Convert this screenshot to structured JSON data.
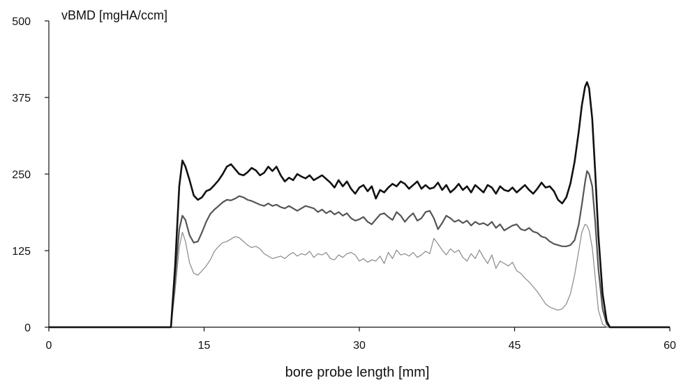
{
  "chart_data": {
    "type": "line",
    "title": "",
    "ylabel": "vBMD [mgHA/ccm]",
    "xlabel": "bore probe length  [mm]",
    "xlim": [
      0,
      60
    ],
    "ylim": [
      0,
      500
    ],
    "xticks": [
      0,
      15,
      30,
      45,
      60
    ],
    "yticks": [
      0,
      125,
      250,
      375,
      500
    ],
    "grid": false,
    "legend": "none",
    "series": [
      {
        "color": "#111111",
        "x": [
          0,
          11.8,
          12.2,
          12.6,
          12.9,
          13.2,
          13.6,
          14.0,
          14.4,
          14.8,
          15.2,
          15.6,
          16.0,
          16.4,
          16.8,
          17.2,
          17.6,
          18.0,
          18.4,
          18.8,
          19.2,
          19.6,
          20.0,
          20.4,
          20.8,
          21.2,
          21.6,
          22.0,
          22.4,
          22.8,
          23.2,
          23.6,
          24.0,
          24.4,
          24.8,
          25.2,
          25.6,
          26.0,
          26.4,
          26.8,
          27.2,
          27.6,
          28.0,
          28.4,
          28.8,
          29.2,
          29.6,
          30.0,
          30.4,
          30.8,
          31.2,
          31.6,
          32.0,
          32.4,
          32.8,
          33.2,
          33.6,
          34.0,
          34.4,
          34.8,
          35.2,
          35.6,
          36.0,
          36.4,
          36.8,
          37.2,
          37.6,
          38.0,
          38.4,
          38.8,
          39.2,
          39.6,
          40.0,
          40.4,
          40.8,
          41.2,
          41.6,
          42.0,
          42.4,
          42.8,
          43.2,
          43.6,
          44.0,
          44.4,
          44.8,
          45.2,
          45.6,
          46.0,
          46.4,
          46.8,
          47.2,
          47.6,
          48.0,
          48.4,
          48.8,
          49.2,
          49.6,
          50.0,
          50.4,
          50.8,
          51.2,
          51.5,
          51.8,
          52.0,
          52.2,
          52.5,
          52.8,
          53.1,
          53.5,
          53.9,
          54.2,
          60
        ],
        "y": [
          0,
          0,
          100,
          230,
          272,
          262,
          240,
          215,
          208,
          212,
          222,
          225,
          232,
          240,
          250,
          262,
          266,
          258,
          250,
          248,
          253,
          260,
          256,
          248,
          252,
          262,
          255,
          262,
          248,
          238,
          244,
          240,
          250,
          246,
          243,
          248,
          240,
          244,
          248,
          242,
          236,
          228,
          240,
          230,
          238,
          226,
          218,
          228,
          232,
          222,
          230,
          210,
          224,
          220,
          228,
          234,
          230,
          238,
          234,
          226,
          232,
          238,
          226,
          232,
          226,
          228,
          236,
          224,
          232,
          220,
          226,
          234,
          224,
          230,
          220,
          232,
          226,
          220,
          232,
          228,
          218,
          230,
          224,
          222,
          228,
          220,
          226,
          232,
          224,
          218,
          226,
          236,
          228,
          230,
          222,
          208,
          202,
          212,
          235,
          270,
          320,
          362,
          392,
          400,
          390,
          340,
          250,
          150,
          55,
          10,
          0,
          0
        ]
      },
      {
        "color": "#555555",
        "x": [
          0,
          11.8,
          12.2,
          12.6,
          12.9,
          13.2,
          13.6,
          14.0,
          14.4,
          14.8,
          15.2,
          15.6,
          16.0,
          16.4,
          16.8,
          17.2,
          17.6,
          18.0,
          18.4,
          18.8,
          19.2,
          19.6,
          20.0,
          20.4,
          20.8,
          21.2,
          21.6,
          22.0,
          22.4,
          22.8,
          23.2,
          23.6,
          24.0,
          24.4,
          24.8,
          25.2,
          25.6,
          26.0,
          26.4,
          26.8,
          27.2,
          27.6,
          28.0,
          28.4,
          28.8,
          29.2,
          29.6,
          30.0,
          30.4,
          30.8,
          31.2,
          31.6,
          32.0,
          32.4,
          32.8,
          33.2,
          33.6,
          34.0,
          34.4,
          34.8,
          35.2,
          35.6,
          36.0,
          36.4,
          36.8,
          37.2,
          37.6,
          38.0,
          38.4,
          38.8,
          39.2,
          39.6,
          40.0,
          40.4,
          40.8,
          41.2,
          41.6,
          42.0,
          42.4,
          42.8,
          43.2,
          43.6,
          44.0,
          44.4,
          44.8,
          45.2,
          45.6,
          46.0,
          46.4,
          46.8,
          47.2,
          47.6,
          48.0,
          48.4,
          48.8,
          49.2,
          49.6,
          50.0,
          50.4,
          50.8,
          51.2,
          51.5,
          51.8,
          52.0,
          52.2,
          52.5,
          52.8,
          53.1,
          53.5,
          53.9,
          54.2,
          60
        ],
        "y": [
          0,
          0,
          80,
          160,
          182,
          175,
          150,
          138,
          140,
          155,
          172,
          185,
          192,
          198,
          204,
          208,
          207,
          210,
          214,
          212,
          208,
          206,
          203,
          200,
          198,
          202,
          198,
          200,
          196,
          194,
          198,
          194,
          190,
          194,
          198,
          196,
          194,
          188,
          192,
          186,
          190,
          184,
          188,
          182,
          186,
          178,
          174,
          176,
          180,
          172,
          168,
          176,
          184,
          186,
          180,
          175,
          188,
          182,
          172,
          180,
          186,
          174,
          178,
          188,
          190,
          178,
          160,
          170,
          182,
          178,
          172,
          175,
          170,
          174,
          166,
          172,
          168,
          170,
          166,
          172,
          162,
          168,
          158,
          162,
          166,
          168,
          160,
          158,
          162,
          156,
          154,
          148,
          146,
          140,
          136,
          134,
          132,
          132,
          134,
          142,
          168,
          200,
          236,
          255,
          250,
          230,
          170,
          95,
          30,
          5,
          0,
          0
        ]
      },
      {
        "color": "#888888",
        "x": [
          0,
          11.8,
          12.2,
          12.6,
          12.9,
          13.2,
          13.6,
          14.0,
          14.4,
          14.8,
          15.2,
          15.6,
          16.0,
          16.4,
          16.8,
          17.2,
          17.6,
          18.0,
          18.4,
          18.8,
          19.2,
          19.6,
          20.0,
          20.4,
          20.8,
          21.2,
          21.6,
          22.0,
          22.4,
          22.8,
          23.2,
          23.6,
          24.0,
          24.4,
          24.8,
          25.2,
          25.6,
          26.0,
          26.4,
          26.8,
          27.2,
          27.6,
          28.0,
          28.4,
          28.8,
          29.2,
          29.6,
          30.0,
          30.4,
          30.8,
          31.2,
          31.6,
          32.0,
          32.4,
          32.8,
          33.2,
          33.6,
          34.0,
          34.4,
          34.8,
          35.2,
          35.6,
          36.0,
          36.4,
          36.8,
          37.2,
          37.6,
          38.0,
          38.4,
          38.8,
          39.2,
          39.6,
          40.0,
          40.4,
          40.8,
          41.2,
          41.6,
          42.0,
          42.4,
          42.8,
          43.2,
          43.6,
          44.0,
          44.4,
          44.8,
          45.2,
          45.6,
          46.0,
          46.4,
          46.8,
          47.2,
          47.6,
          48.0,
          48.4,
          48.8,
          49.2,
          49.6,
          50.0,
          50.4,
          50.8,
          51.2,
          51.5,
          51.8,
          52.0,
          52.2,
          52.5,
          52.8,
          53.1,
          53.5,
          53.9,
          54.2,
          60
        ],
        "y": [
          0,
          0,
          60,
          130,
          155,
          140,
          105,
          88,
          85,
          92,
          100,
          110,
          124,
          132,
          138,
          140,
          144,
          148,
          146,
          140,
          134,
          130,
          132,
          128,
          120,
          116,
          112,
          114,
          116,
          112,
          118,
          122,
          116,
          120,
          118,
          124,
          114,
          120,
          118,
          122,
          112,
          110,
          118,
          114,
          120,
          122,
          118,
          108,
          112,
          106,
          110,
          108,
          116,
          104,
          122,
          112,
          126,
          118,
          120,
          116,
          122,
          114,
          118,
          124,
          120,
          145,
          136,
          126,
          118,
          128,
          122,
          126,
          114,
          108,
          120,
          112,
          126,
          114,
          104,
          118,
          96,
          108,
          104,
          100,
          106,
          92,
          88,
          80,
          74,
          66,
          58,
          48,
          38,
          33,
          30,
          28,
          30,
          38,
          55,
          85,
          125,
          155,
          168,
          166,
          158,
          130,
          80,
          28,
          5,
          0,
          0,
          0
        ]
      }
    ]
  }
}
